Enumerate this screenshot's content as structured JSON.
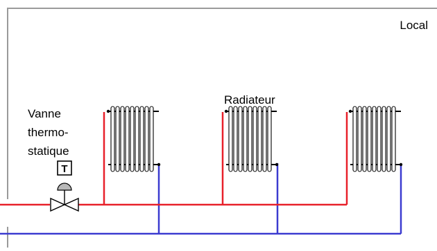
{
  "room": {
    "label": "Local"
  },
  "radiator": {
    "label": "Radiateur"
  },
  "valve": {
    "label_lines": [
      "Vanne",
      "thermo-",
      "statique"
    ],
    "symbol_letter": "T"
  },
  "colors": {
    "supply": "#e8202a",
    "return": "#3b3bd0",
    "wall": "#9a9a9a",
    "stroke": "#000000"
  }
}
